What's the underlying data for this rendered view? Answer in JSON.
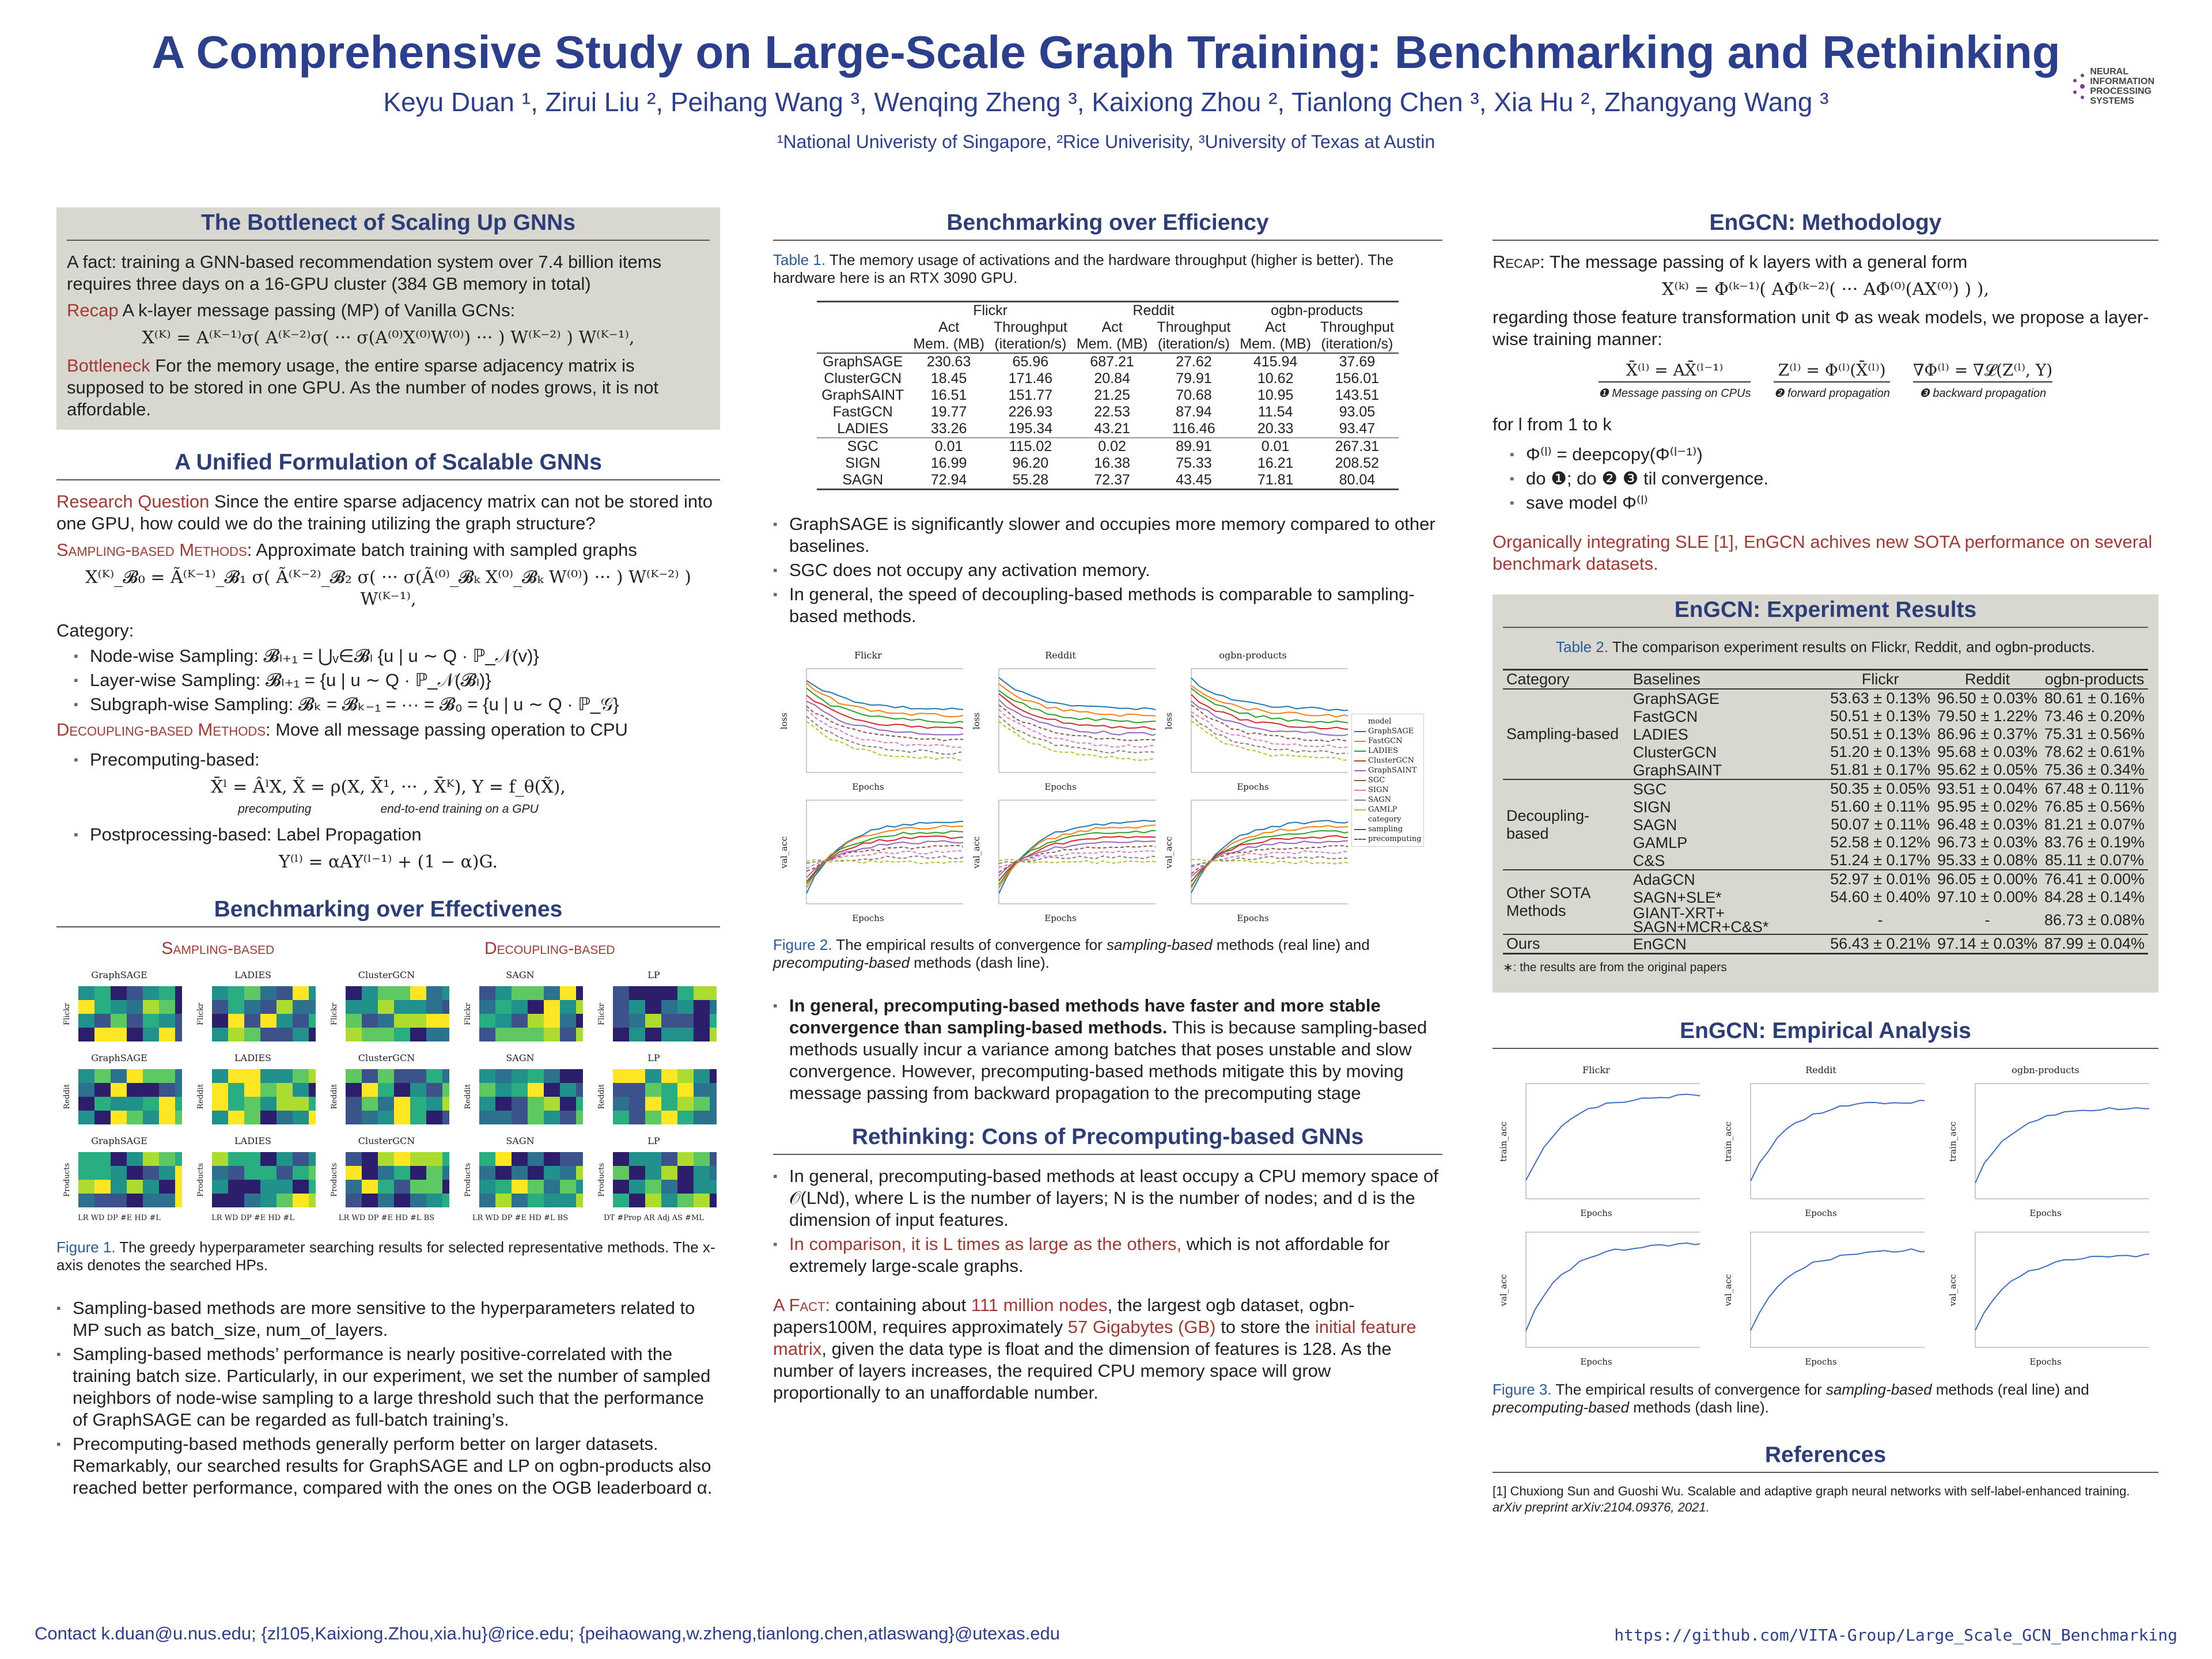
{
  "header": {
    "title": "A Comprehensive Study on Large-Scale Graph Training: Benchmarking and Rethinking",
    "authors": "Keyu Duan ¹, Zirui Liu ², Peihang Wang ³, Wenqing Zheng ³, Kaixiong Zhou ², Tianlong Chen ³, Xia Hu ², Zhangyang Wang ³",
    "affiliations": "¹National Univeristy of Singapore, ²Rice Univerisity, ³University of Texas at Austin",
    "logo_text": "NEURAL INFORMATION PROCESSING SYSTEMS"
  },
  "left": {
    "s1_title": "The Bottlenect of Scaling Up GNNs",
    "s1_fact": "A fact: training a GNN-based recommendation system over 7.4 billion items requires three days on a 16-GPU cluster (384 GB memory in total)",
    "s1_recap_label": "Recap",
    "s1_recap": " A k-layer message passing (MP) of Vanilla GCNs:",
    "s1_eq": "X⁽ᴷ⁾ = A⁽ᴷ⁻¹⁾σ( A⁽ᴷ⁻²⁾σ( ··· σ(A⁽⁰⁾X⁽⁰⁾W⁽⁰⁾) ··· ) W⁽ᴷ⁻²⁾ ) W⁽ᴷ⁻¹⁾,",
    "s1_bott_label": "Bottleneck",
    "s1_bott": " For the memory usage, the entire sparse adjacency matrix is supposed to be stored in one GPU. As the number of nodes grows, it is not affordable.",
    "s2_title": "A Unified Formulation of Scalable GNNs",
    "s2_rq_label": "Research Question",
    "s2_rq": " Since the entire sparse adjacency matrix can not be stored into one GPU, how could we do the training utilizing the graph structure?",
    "s2_samp_label": "Sampling-based Methods",
    "s2_samp": ": Approximate batch training with sampled graphs",
    "s2_eq": "X⁽ᴷ⁾_𝓑₀ = Ã⁽ᴷ⁻¹⁾_𝓑₁ σ( Ã⁽ᴷ⁻²⁾_𝓑₂ σ( ··· σ(Ã⁽⁰⁾_𝓑ₖ X⁽⁰⁾_𝓑ₖ W⁽⁰⁾) ··· ) W⁽ᴷ⁻²⁾ ) W⁽ᴷ⁻¹⁾,",
    "s2_category": "Category:",
    "s2_cats": [
      "Node-wise Sampling: 𝓑ₗ₊₁ = ⋃ᵥ∈𝓑ₗ {u | u ∼ Q · ℙ_𝒩(v)}",
      "Layer-wise Sampling: 𝓑ₗ₊₁ = {u | u ∼ Q · ℙ_𝒩(𝓑ₗ)}",
      "Subgraph-wise Sampling: 𝓑ₖ = 𝓑ₖ₋₁ = ··· = 𝓑₀ = {u | u ∼ Q · ℙ_𝒢}"
    ],
    "s2_dec_label": "Decoupling-based Methods",
    "s2_dec": ": Move all message passing operation to CPU",
    "s2_pre": "Precomputing-based:",
    "s2_pre_eq": "X̄ˡ = ÂˡX,   X̃ = ρ(X, X̄¹, ··· , X̄ᴷ),   Y = f_θ(X̃),",
    "s2_pre_note1": "precomputing",
    "s2_pre_note2": "end-to-end training on a GPU",
    "s2_post": "Postprocessing-based: Label Propagation",
    "s2_post_eq": "Y⁽ˡ⁾ = αAY⁽ˡ⁻¹⁾ + (1 − α)G.",
    "s3_title": "Benchmarking over Effectivenes",
    "s3_samp": "Sampling-based",
    "s3_dec": "Decoupling-based",
    "fig1_rows": [
      {
        "ylabel": "Flickr",
        "panels": [
          "GraphSAGE",
          "LADIES",
          "ClusterGCN",
          "SAGN",
          "LP"
        ]
      },
      {
        "ylabel": "Reddit",
        "panels": [
          "GraphSAGE",
          "LADIES",
          "ClusterGCN",
          "SAGN",
          "LP"
        ]
      },
      {
        "ylabel": "Products",
        "panels": [
          "GraphSAGE",
          "LADIES",
          "ClusterGCN",
          "SAGN",
          "LP"
        ]
      }
    ],
    "fig1_xlabels": [
      "LR WD DP #E HD #L",
      "LR WD DP #E HD #L",
      "LR WD DP #E HD #L BS",
      "LR WD DP #E HD #L BS",
      "DT #Prop AR Adj AS #ML"
    ],
    "fig1_cap_label": "Figure 1.",
    "fig1_cap": " The greedy hyperparameter searching results for selected representative methods. The x-axis denotes the searched HPs.",
    "bullets": [
      "Sampling-based methods are more sensitive to the hyperparameters related to MP such as batch_size, num_of_layers.",
      "Sampling-based methods’ performance is nearly positive-correlated with the training batch size. Particularly, in our experiment, we set the number of sampled neighbors of node-wise sampling to a large threshold such that the performance of GraphSAGE can be regarded as full-batch training’s.",
      "Precomputing-based methods generally perform better on larger datasets. Remarkably, our searched results for GraphSAGE and LP on ogbn-products also reached better performance, compared with the ones on the OGB leaderboard α."
    ]
  },
  "middle": {
    "s1_title": "Benchmarking over Efficiency",
    "t1_label": "Table 1.",
    "t1_cap": " The memory usage of activations and the hardware throughput (higher is better). The hardware here is an RTX 3090 GPU.",
    "t1_datasets": [
      "Flickr",
      "Reddit",
      "ogbn-products"
    ],
    "t1_sub1": [
      "Act",
      "Throughput",
      "Act",
      "Throughput",
      "Act",
      "Throughput"
    ],
    "t1_sub2": [
      "Mem. (MB)",
      "(iteration/s)",
      "Mem. (MB)",
      "(iteration/s)",
      "Mem. (MB)",
      "(iteration/s)"
    ],
    "t1_rows": [
      [
        "GraphSAGE",
        "230.63",
        "65.96",
        "687.21",
        "27.62",
        "415.94",
        "37.69"
      ],
      [
        "ClusterGCN",
        "18.45",
        "171.46",
        "20.84",
        "79.91",
        "10.62",
        "156.01"
      ],
      [
        "GraphSAINT",
        "16.51",
        "151.77",
        "21.25",
        "70.68",
        "10.95",
        "143.51"
      ],
      [
        "FastGCN",
        "19.77",
        "226.93",
        "22.53",
        "87.94",
        "11.54",
        "93.05"
      ],
      [
        "LADIES",
        "33.26",
        "195.34",
        "43.21",
        "116.46",
        "20.33",
        "93.47"
      ],
      [
        "SGC",
        "0.01",
        "115.02",
        "0.02",
        "89.91",
        "0.01",
        "267.31"
      ],
      [
        "SIGN",
        "16.99",
        "96.20",
        "16.38",
        "75.33",
        "16.21",
        "208.52"
      ],
      [
        "SAGN",
        "72.94",
        "55.28",
        "72.37",
        "43.45",
        "71.81",
        "80.04"
      ]
    ],
    "bullets1": [
      "GraphSAGE is significantly slower and occupies more memory compared to other baselines.",
      "SGC does not occupy any activation memory.",
      "In general, the speed of decoupling-based methods is comparable to sampling-based methods."
    ],
    "fig2_titles": [
      "Flickr",
      "Reddit",
      "ogbn-products"
    ],
    "fig2_ylabels": [
      "loss",
      "val_acc"
    ],
    "fig2_xlabel": "Epochs",
    "fig2_legend": [
      "model",
      "GraphSAGE",
      "FastGCN",
      "LADIES",
      "ClusterGCN",
      "GraphSAINT",
      "SGC",
      "SIGN",
      "SAGN",
      "GAMLP",
      "category",
      "sampling",
      "precomputing"
    ],
    "fig2_colors": [
      "#1f77b4",
      "#ff7f0e",
      "#2ca02c",
      "#d62728",
      "#9467bd",
      "#8c564b",
      "#e377c2",
      "#7f7f7f",
      "#bcbd22"
    ],
    "fig2_label": "Figure 2.",
    "fig2_cap_a": " The empirical results of convergence for ",
    "fig2_cap_b": "sampling-based",
    "fig2_cap_c": " methods (real line) and ",
    "fig2_cap_d": "precomputing-based",
    "fig2_cap_e": " methods (dash line).",
    "bullet2_bold": "In general, precomputing-based methods have faster and more stable convergence than sampling-based methods.",
    "bullet2": " This is because sampling-based methods usually incur a variance among batches that poses unstable and slow convergence. However, precomputing-based methods mitigate this by moving message passing from backward propagation to the precomputing stage",
    "s2_title": "Rethinking: Cons of Precomputing-based GNNs",
    "r_b1": "In general, precomputing-based methods at least occupy a CPU memory space of 𝒪(LNd), where L is the number of layers; N is the number of nodes; and d is the dimension of input features.",
    "r_b2_red": "In comparison, it is L times as large as the others,",
    "r_b2": " which is not affordable for extremely large-scale graphs.",
    "fact_label": "A Fact:",
    "fact_1": " containing about ",
    "fact_nodes": "111 million nodes",
    "fact_2": ", the largest ogb dataset, ogbn-papers100M, requires approximately ",
    "fact_gb": "57 Gigabytes (GB)",
    "fact_3": " to store the ",
    "fact_feat": "initial feature matrix",
    "fact_4": ", given the data type is float and the dimension of features is 128. As the number of layers increases, the required CPU memory space will grow proportionally to an unaffordable number."
  },
  "right": {
    "s1_title": "EnGCN: Methodology",
    "recap_label": "Recap",
    "recap": ": The message passing of k layers with a general form",
    "eq1": "X⁽ᵏ⁾ = Φ⁽ᵏ⁻¹⁾( AΦ⁽ᵏ⁻²⁾( ··· AΦ⁽⁰⁾(AX⁽⁰⁾) ) ),",
    "para": "regarding those feature transformation unit Φ as weak models, we propose a layer-wise training manner:",
    "steps": [
      {
        "eq": "X̄⁽ˡ⁾ = AX̄⁽ˡ⁻¹⁾",
        "note": "❶ Message passing on CPUs"
      },
      {
        "eq": "Z⁽ˡ⁾ = Φ⁽ˡ⁾(X̄⁽ˡ⁾)",
        "note": "❷ forward propagation"
      },
      {
        "eq": "∇Φ⁽ˡ⁾ = ∇𝓛(Z⁽ˡ⁾, Y)",
        "note": "❸ backward propagation"
      }
    ],
    "for_l": "for l from 1 to k",
    "loop": [
      "Φ⁽ˡ⁾ = deepcopy(Φ⁽ˡ⁻¹⁾)",
      "do ❶; do ❷ ❸ til convergence.",
      "save model Φ⁽ˡ⁾"
    ],
    "conclusion": "Organically integrating SLE [1], EnGCN achives new SOTA performance on several benchmark datasets.",
    "s2_title": "EnGCN: Experiment Results",
    "t2_label": "Table 2.",
    "t2_cap": " The comparison experiment results on Flickr, Reddit, and ogbn-products.",
    "t2_headers": [
      "Category",
      "Baselines",
      "Flickr",
      "Reddit",
      "ogbn-products"
    ],
    "t2_groups": [
      {
        "category": "Sampling-based",
        "rows": [
          [
            "GraphSAGE",
            "53.63 ± 0.13%",
            "96.50 ± 0.03%",
            "80.61 ± 0.16%"
          ],
          [
            "FastGCN",
            "50.51 ± 0.13%",
            "79.50 ± 1.22%",
            "73.46 ± 0.20%"
          ],
          [
            "LADIES",
            "50.51 ± 0.13%",
            "86.96 ± 0.37%",
            "75.31 ± 0.56%"
          ],
          [
            "ClusterGCN",
            "51.20 ± 0.13%",
            "95.68 ± 0.03%",
            "78.62 ± 0.61%"
          ],
          [
            "GraphSAINT",
            "51.81 ± 0.17%",
            "95.62 ± 0.05%",
            "75.36 ± 0.34%"
          ]
        ]
      },
      {
        "category": "Decoupling-based",
        "rows": [
          [
            "SGC",
            "50.35 ± 0.05%",
            "93.51 ± 0.04%",
            "67.48 ± 0.11%"
          ],
          [
            "SIGN",
            "51.60 ± 0.11%",
            "95.95 ± 0.02%",
            "76.85 ± 0.56%"
          ],
          [
            "SAGN",
            "50.07 ± 0.11%",
            "96.48 ± 0.03%",
            "81.21 ± 0.07%"
          ],
          [
            "GAMLP",
            "52.58 ± 0.12%",
            "96.73 ± 0.03%",
            "83.76 ± 0.19%"
          ],
          [
            "C&S",
            "51.24 ± 0.17%",
            "95.33 ± 0.08%",
            "85.11 ± 0.07%"
          ]
        ]
      },
      {
        "category": "Other SOTA Methods",
        "rows": [
          [
            "AdaGCN",
            "52.97 ± 0.01%",
            "96.05 ± 0.00%",
            "76.41 ± 0.00%"
          ],
          [
            "SAGN+SLE*",
            "54.60 ± 0.40%",
            "97.10 ± 0.00%",
            "84.28 ± 0.14%"
          ],
          [
            "GIANT-XRT+ SAGN+MCR+C&S*",
            "-",
            "-",
            "86.73 ± 0.08%"
          ]
        ]
      },
      {
        "category": "Ours",
        "rows": [
          [
            "EnGCN",
            "56.43 ± 0.21%",
            "97.14 ± 0.03%",
            "87.99 ± 0.04%"
          ]
        ]
      }
    ],
    "t2_note": "∗: the results are from the original papers",
    "s3_title": "EnGCN: Empirical Analysis",
    "fig3_titles": [
      "Flickr",
      "Reddit",
      "ogbn-products"
    ],
    "fig3_ylabels": [
      "train_acc",
      "val_acc"
    ],
    "fig3_xlabel": "Epochs",
    "fig3_label": "Figure 3.",
    "fig3_cap_a": " The empirical results of convergence for ",
    "fig3_cap_b": "sampling-based",
    "fig3_cap_c": " methods (real line) and ",
    "fig3_cap_d": "precomputing-based",
    "fig3_cap_e": " methods (dash line).",
    "s4_title": "References",
    "ref_num": "[1]",
    "ref": "Chuxiong Sun and Guoshi Wu. Scalable and adaptive graph neural networks with self-label-enhanced training.",
    "ref_venue": "arXiv preprint arXiv:2104.09376, 2021."
  },
  "footer": {
    "contact": "Contact k.duan@u.nus.edu; {zl105,Kaixiong.Zhou,xia.hu}@rice.edu; {peihaowang,w.zheng,tianlong.chen,atlaswang}@utexas.edu",
    "github": "https://github.com/VITA-Group/Large_Scale_GCN_Benchmarking"
  },
  "colors": {
    "title": "#2b3f8c",
    "accent_red": "#a23a33",
    "caption_blue": "#2a5c9a",
    "box_bg": "#d9d8d0"
  }
}
